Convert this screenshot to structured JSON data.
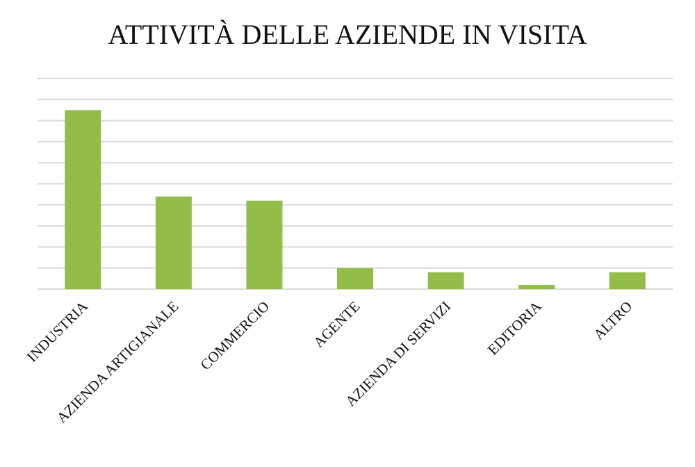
{
  "chart_data": {
    "type": "bar",
    "title": "ATTIVITÀ DELLE AZIENDE IN VISITA",
    "categories": [
      "INDUSTRIA",
      "AZIENDA ARTIGIANALE",
      "COMMERCIO",
      "AGENTE",
      "AZIENDA DI SERVIZI",
      "EDITORIA",
      "ALTRO"
    ],
    "values": [
      8.5,
      4.4,
      4.2,
      1,
      0.8,
      0.2,
      0.8
    ],
    "color": "#92bd48",
    "ylim": [
      0,
      10
    ],
    "yticks": [
      0,
      1,
      2,
      3,
      4,
      5,
      6,
      7,
      8,
      9,
      10
    ],
    "grid": true
  }
}
